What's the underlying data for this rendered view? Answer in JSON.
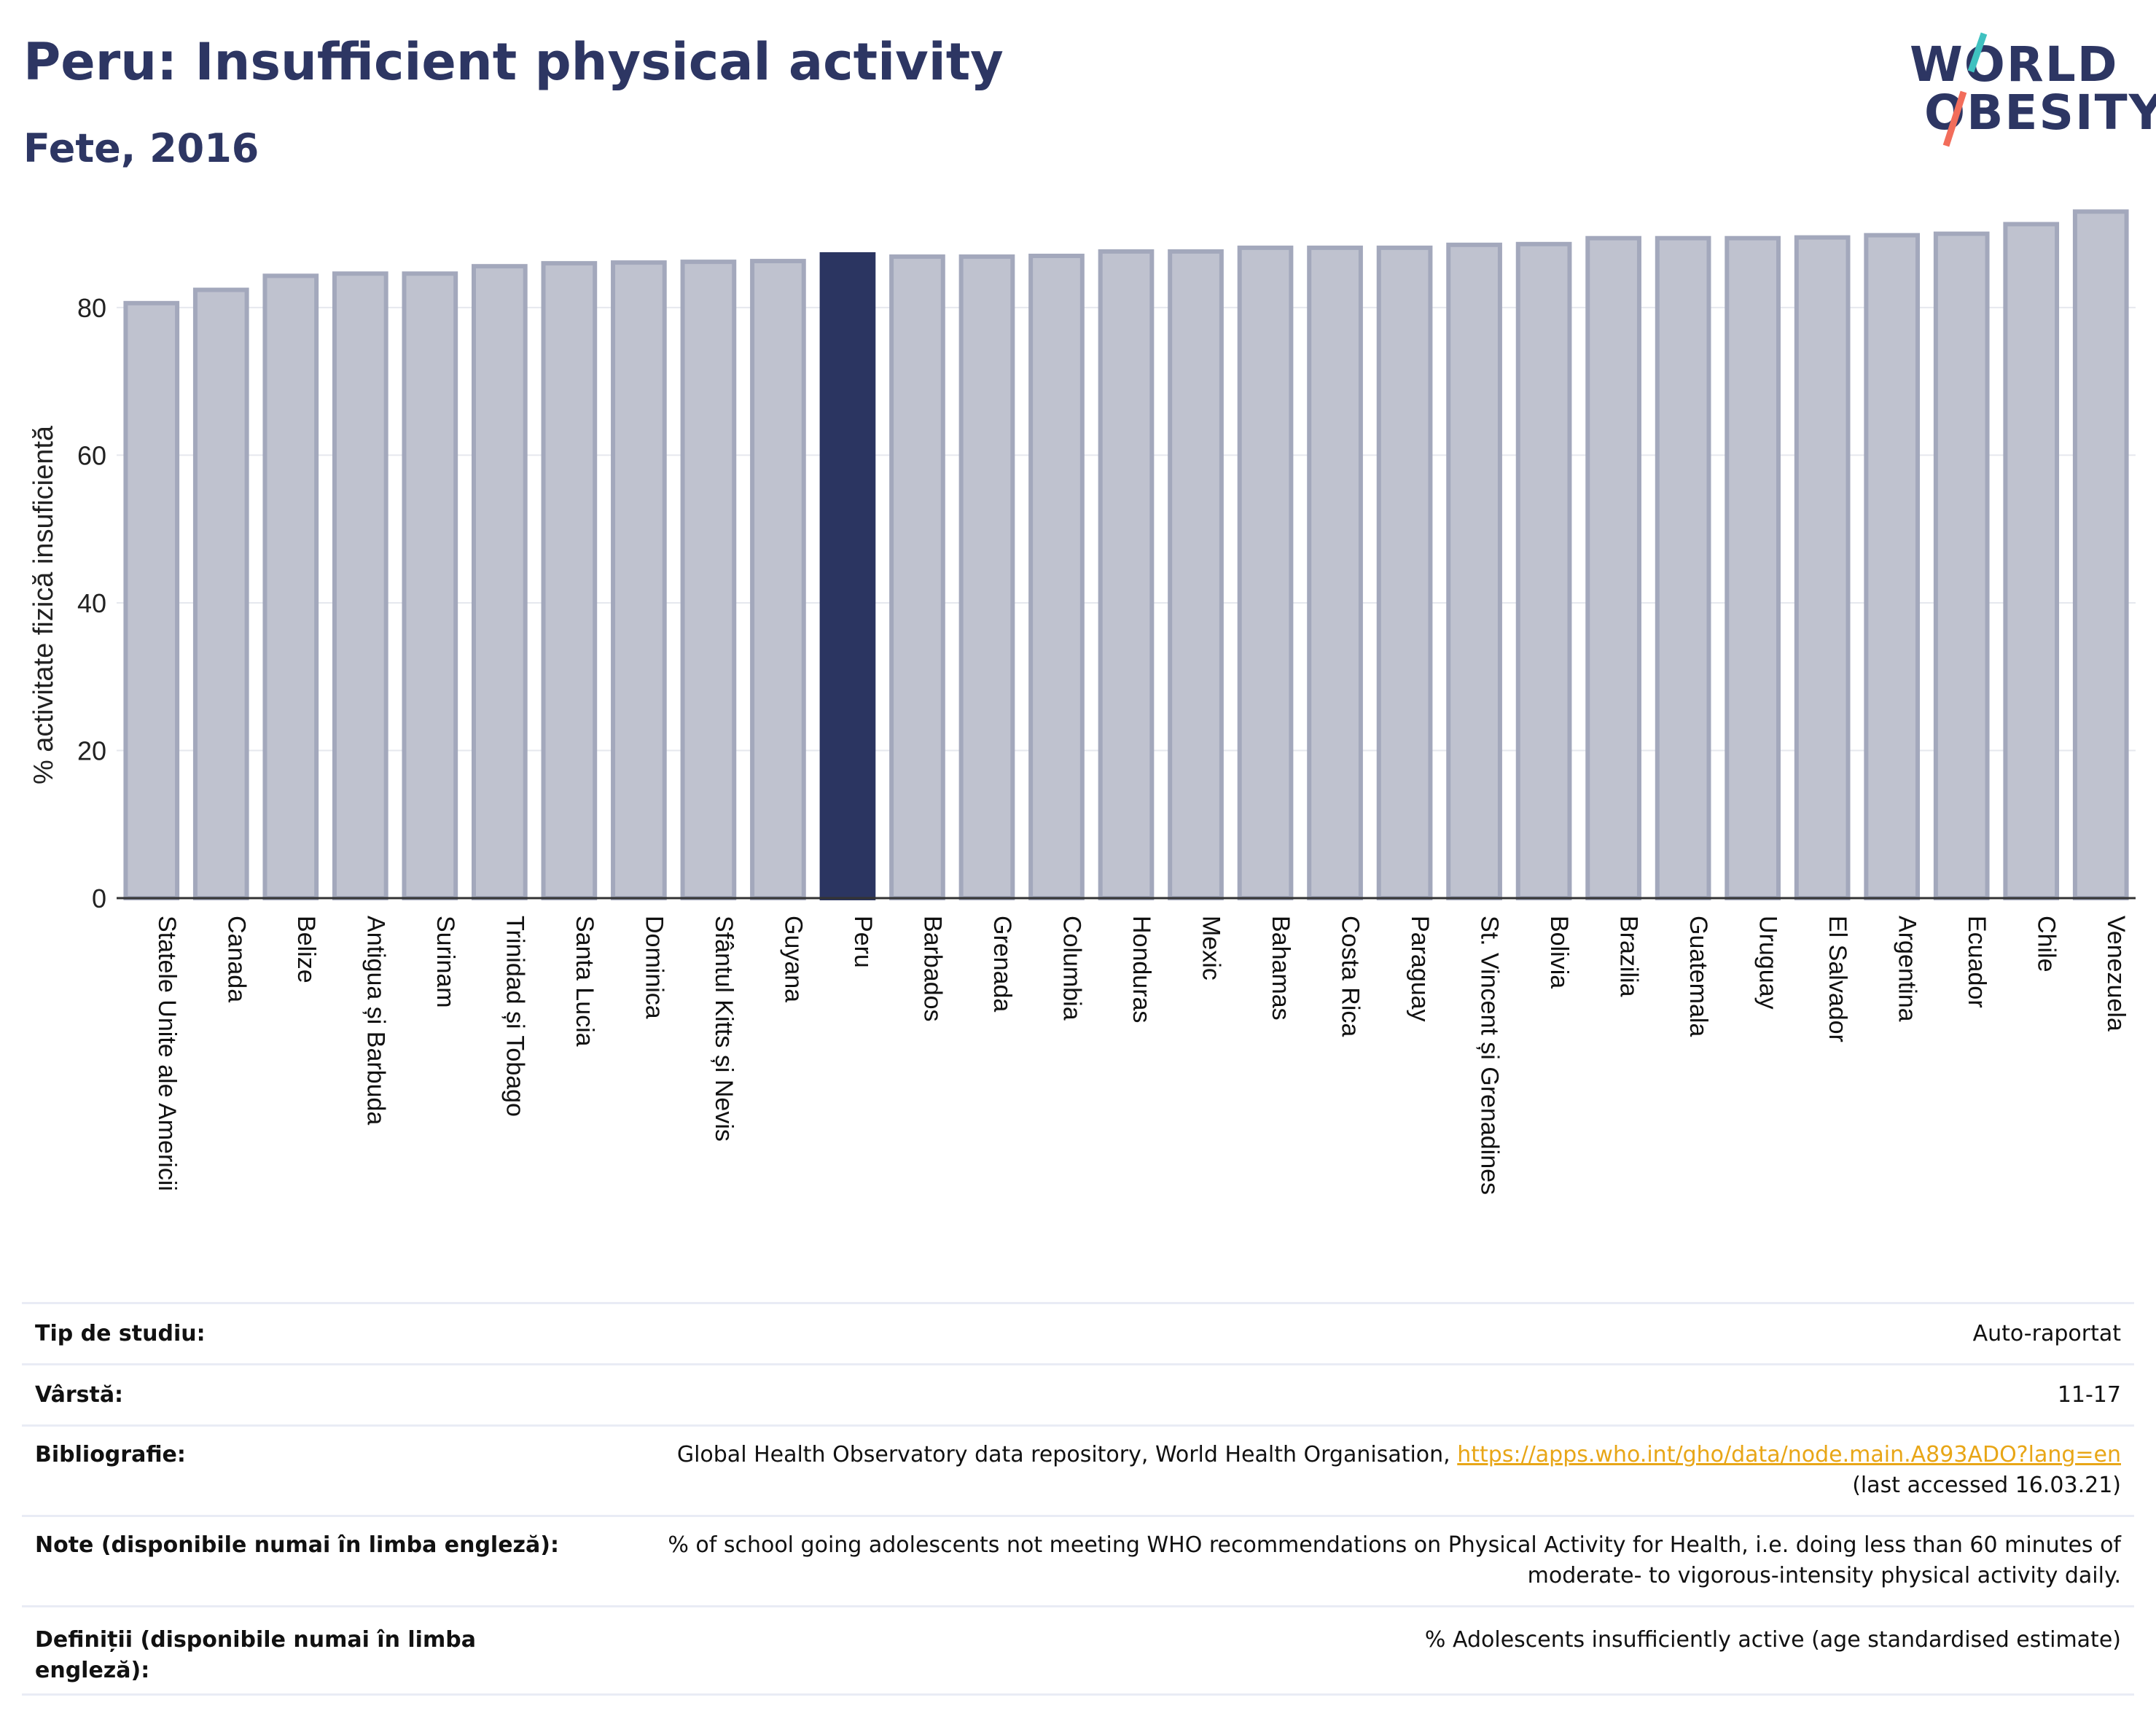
{
  "header": {
    "title": "Peru: Insufficient physical activity",
    "subtitle": "Fete, 2016"
  },
  "logo": {
    "line1": "WORLD",
    "line2": "OBESITY"
  },
  "chart_data": {
    "type": "bar",
    "ylabel": "% activitate fizică insuficientă",
    "ylim": [
      0,
      95
    ],
    "yticks": [
      0,
      20,
      40,
      60,
      80
    ],
    "grid": true,
    "highlight": "Peru",
    "colors": {
      "bar": "#bfc2cf",
      "bar_border": "#a3a8bc",
      "highlight": "#2b3561",
      "grid": "#e6e8ee",
      "axis": "#333333"
    },
    "categories": [
      "Statele Unite ale Americii",
      "Canada",
      "Belize",
      "Antigua și Barbuda",
      "Surinam",
      "Trinidad și Tobago",
      "Santa Lucia",
      "Dominica",
      "Sfântul Kitts și Nevis",
      "Guyana",
      "Peru",
      "Barbados",
      "Grenada",
      "Columbia",
      "Honduras",
      "Mexic",
      "Bahamas",
      "Costa Rica",
      "Paraguay",
      "St. Vincent și Grenadines",
      "Bolivia",
      "Brazilia",
      "Guatemala",
      "Uruguay",
      "El Salvador",
      "Argentina",
      "Ecuador",
      "Chile",
      "Venezuela"
    ],
    "values": [
      80.6,
      82.4,
      84.3,
      84.6,
      84.6,
      85.6,
      86.0,
      86.1,
      86.2,
      86.3,
      87.2,
      86.9,
      86.9,
      87.0,
      87.6,
      87.6,
      88.1,
      88.1,
      88.1,
      88.5,
      88.6,
      89.4,
      89.4,
      89.4,
      89.5,
      89.8,
      90.0,
      91.3,
      93.0
    ]
  },
  "info": [
    {
      "label": "Tip de studiu:",
      "value": "Auto-raportat"
    },
    {
      "label": "Vârstă:",
      "value": "11-17"
    },
    {
      "label": "Bibliografie:",
      "value": "Global Health Observatory data repository, World Health Organisation,",
      "link": "https://apps.who.int/gho/data/node.main.A893ADO?lang=en",
      "value2": "(last accessed 16.03.21)"
    },
    {
      "label": "Note (disponibile numai în limba engleză):",
      "value": "% of school going adolescents not meeting WHO recommendations on Physical Activity for Health, i.e. doing less than 60 minutes of",
      "value2": "moderate- to vigorous-intensity physical activity daily."
    },
    {
      "label": "Definiții (disponibile numai în limba engleză):",
      "value": "% Adolescents insufficiently active (age standardised estimate)"
    }
  ]
}
